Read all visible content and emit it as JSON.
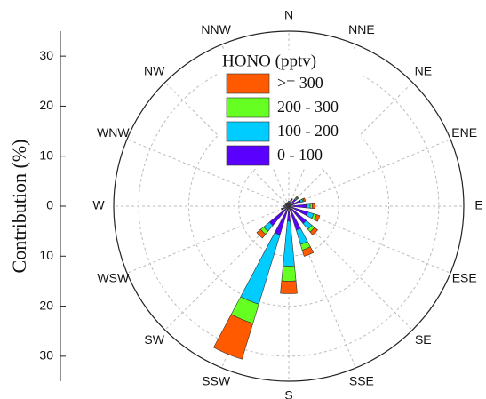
{
  "chart_data": {
    "type": "polar-bar",
    "ylabel": "Contribution (%)",
    "legend_title": "HONO (pptv)",
    "categories": [
      "N",
      "NNE",
      "NE",
      "ENE",
      "E",
      "ESE",
      "SE",
      "SSE",
      "S",
      "SSW",
      "SW",
      "WSW",
      "W",
      "WNW",
      "NW",
      "NNW"
    ],
    "series": [
      {
        "name": "0 - 100",
        "color": "#5a00ff",
        "values": [
          0.8,
          1.2,
          1.8,
          2.5,
          3.5,
          4,
          4.5,
          5,
          3,
          6,
          5,
          1.2,
          0.8,
          0.6,
          0.6,
          0.6
        ]
      },
      {
        "name": "100 - 200",
        "color": "#00ccff",
        "values": [
          0.1,
          0.2,
          0.3,
          0.5,
          0.8,
          1.2,
          1.5,
          3,
          9,
          14.5,
          1.5,
          0.2,
          0.1,
          0.1,
          0.1,
          0.1
        ]
      },
      {
        "name": "200 - 300",
        "color": "#66ff22",
        "values": [
          0.05,
          0.1,
          0.2,
          0.2,
          0.4,
          0.6,
          0.7,
          1.2,
          3,
          4,
          0.8,
          0.1,
          0.05,
          0.05,
          0.05,
          0.05
        ]
      },
      {
        "name": ">= 300",
        "color": "#ff5a00",
        "values": [
          0.05,
          0.1,
          0.2,
          0.3,
          0.6,
          0.7,
          0.8,
          1.3,
          2.5,
          7.5,
          1,
          0.1,
          0.05,
          0.05,
          0.05,
          0.05
        ]
      }
    ],
    "rlim": [
      0,
      35
    ],
    "rticks": [
      0,
      10,
      20,
      30
    ],
    "grid": true
  }
}
